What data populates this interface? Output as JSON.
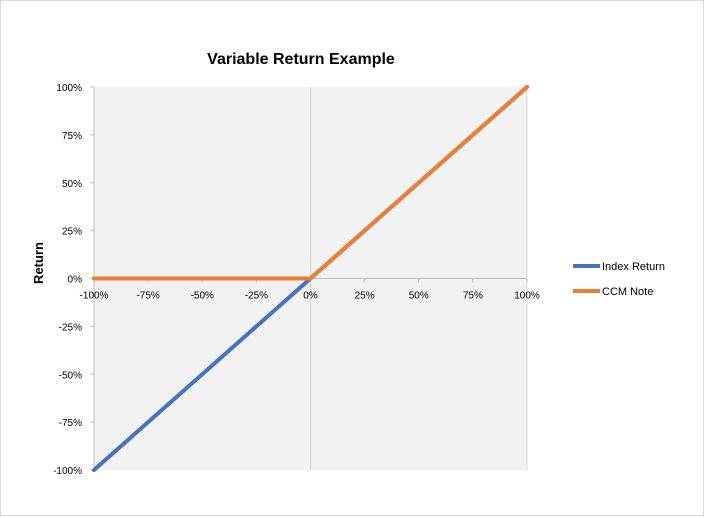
{
  "chart_data": {
    "type": "line",
    "title": "Variable Return Example",
    "xlabel": "",
    "ylabel": "Return",
    "xlim": [
      -100,
      100
    ],
    "ylim": [
      -100,
      100
    ],
    "x_tick_labels": [
      "-100%",
      "-75%",
      "-50%",
      "-25%",
      "0%",
      "25%",
      "50%",
      "75%",
      "100%"
    ],
    "y_tick_labels": [
      "100%",
      "75%",
      "50%",
      "25%",
      "0%",
      "-25%",
      "-50%",
      "-75%",
      "-100%"
    ],
    "x_ticks": [
      -100,
      -75,
      -50,
      -25,
      0,
      25,
      50,
      75,
      100
    ],
    "y_ticks": [
      100,
      75,
      50,
      25,
      0,
      -25,
      -50,
      -75,
      -100
    ],
    "grid": false,
    "legend_position": "right",
    "series": [
      {
        "name": "Index Return",
        "color": "#4472c4",
        "x": [
          -100,
          -75,
          -50,
          -25,
          0,
          25,
          50,
          75,
          100
        ],
        "y": [
          -100,
          -75,
          -50,
          -25,
          0,
          25,
          50,
          75,
          100
        ]
      },
      {
        "name": "CCM Note",
        "color": "#ed7d31",
        "x": [
          -100,
          -75,
          -50,
          -25,
          0,
          25,
          50,
          75,
          100
        ],
        "y": [
          0,
          0,
          0,
          0,
          0,
          25,
          50,
          75,
          100
        ]
      }
    ]
  }
}
